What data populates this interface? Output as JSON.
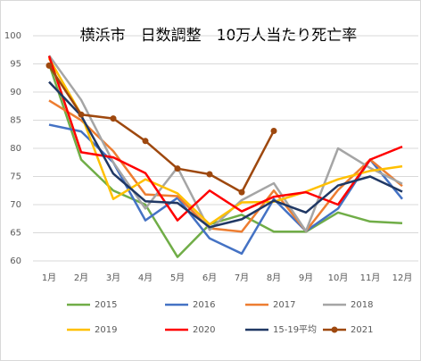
{
  "chart_data": {
    "type": "line",
    "title": "横浜市　日数調整　10万人当たり死亡率",
    "categories": [
      "1月",
      "2月",
      "3月",
      "4月",
      "5月",
      "6月",
      "7月",
      "8月",
      "9月",
      "10月",
      "11月",
      "12月"
    ],
    "ylim": [
      60,
      100
    ],
    "yticks": [
      60,
      65,
      70,
      75,
      80,
      85,
      90,
      95,
      100
    ],
    "grid": true,
    "series": [
      {
        "name": "2015",
        "color": "#70ad47",
        "values": [
          95,
          78,
          72.5,
          70,
          60.7,
          66.5,
          68.2,
          65.2,
          65.2,
          68.6,
          67,
          66.7
        ]
      },
      {
        "name": "2016",
        "color": "#4472c4",
        "values": [
          84.2,
          83,
          77.5,
          67.2,
          71.2,
          64,
          61.3,
          71,
          65.3,
          69.3,
          78,
          71
        ]
      },
      {
        "name": "2017",
        "color": "#ed7d31",
        "values": [
          88.5,
          85,
          79.5,
          71.8,
          71.5,
          65.8,
          65.2,
          72.5,
          65.3,
          72.6,
          78,
          73.3
        ]
      },
      {
        "name": "2018",
        "color": "#a5a5a5",
        "values": [
          96.5,
          88.6,
          77.5,
          69.3,
          76.6,
          65.5,
          70.8,
          73.8,
          65.3,
          80,
          76.5,
          73.7
        ]
      },
      {
        "name": "2019",
        "color": "#ffc000",
        "values": [
          96,
          86,
          71,
          74.5,
          72,
          66.5,
          70.4,
          70.5,
          72.3,
          74.5,
          76,
          76.8
        ]
      },
      {
        "name": "2020",
        "color": "#ff0000",
        "values": [
          96.4,
          79.3,
          78.4,
          75.6,
          67.2,
          72.5,
          68.8,
          71.4,
          72.2,
          70,
          78,
          80.3
        ]
      },
      {
        "name": "15-19平均",
        "color": "#203864",
        "values": [
          91.8,
          85.8,
          75.5,
          70.6,
          70.3,
          66,
          67.4,
          70.7,
          68.6,
          73.4,
          75,
          72.3
        ]
      },
      {
        "name": "2021",
        "color": "#9e480e",
        "marker": "circle",
        "values": [
          94.7,
          86,
          85.3,
          81.3,
          76.4,
          75.4,
          72.2,
          83.1,
          null,
          null,
          null,
          null
        ]
      }
    ]
  }
}
